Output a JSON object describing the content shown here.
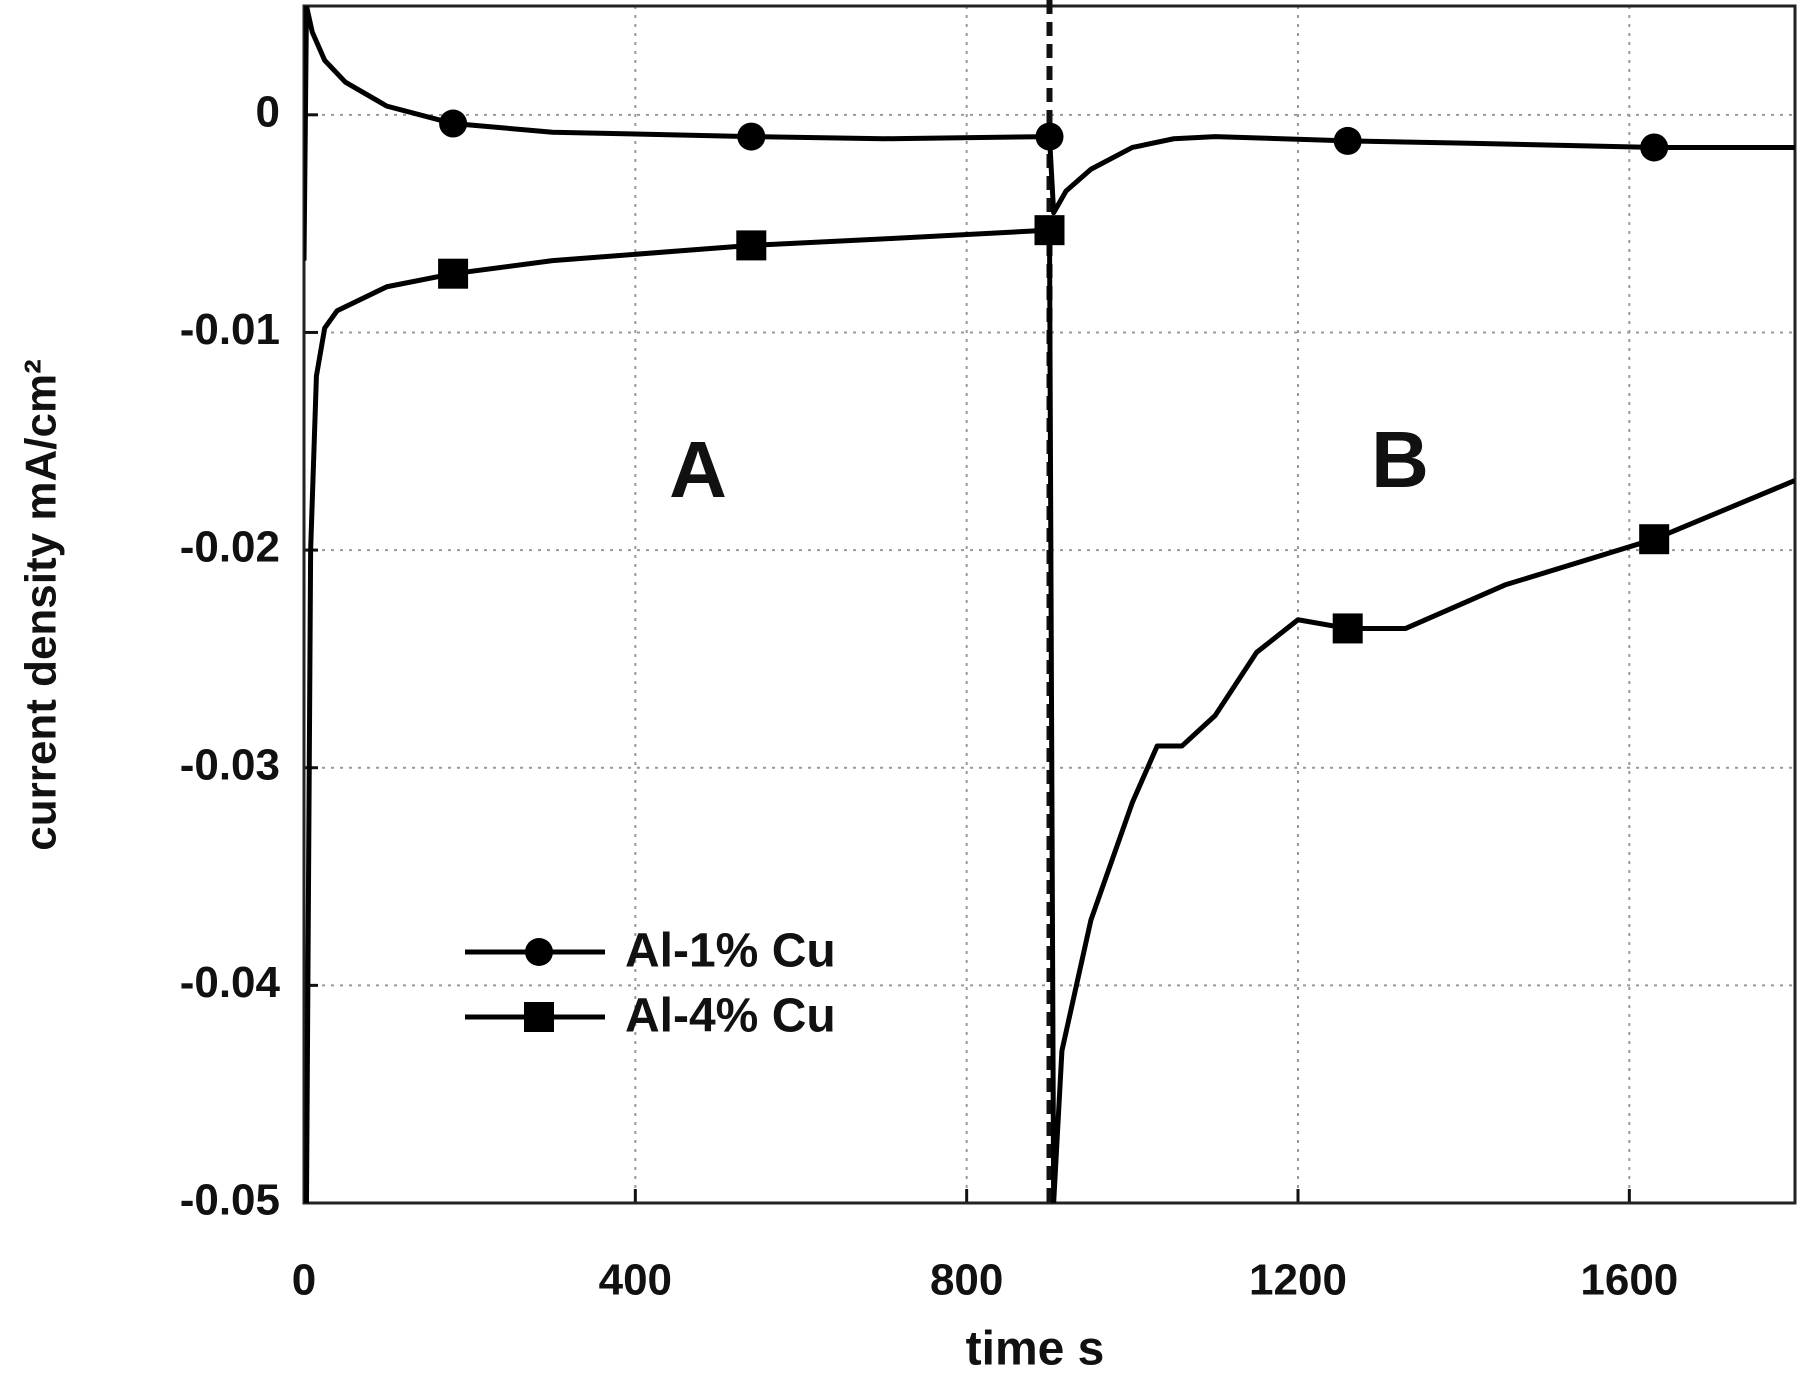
{
  "chart_data": {
    "type": "line",
    "xlabel": "time s",
    "ylabel": "current density mA/cm²",
    "annotations": [
      "A",
      "B"
    ],
    "xlim": [
      0,
      1800
    ],
    "xticks": [
      0,
      400,
      800,
      1200,
      1600
    ],
    "ylim": [
      -0.05,
      0.005
    ],
    "yticks": [
      0,
      -0.01,
      -0.02,
      -0.03,
      -0.04,
      -0.05
    ],
    "grid": true,
    "vline": 900,
    "legend": "lower left",
    "series": [
      {
        "name": "Al-1% Cu",
        "color": "#000000",
        "marker": "circle",
        "marker_x": [
          180,
          540,
          900,
          1260,
          1630
        ],
        "x": [
          0,
          3,
          10,
          25,
          50,
          100,
          180,
          300,
          540,
          700,
          900,
          905,
          920,
          950,
          1000,
          1050,
          1100,
          1260,
          1400,
          1630,
          1800
        ],
        "values": [
          -0.0067,
          0.005,
          0.0038,
          0.0025,
          0.0015,
          0.0004,
          -0.0004,
          -0.0008,
          -0.001,
          -0.0011,
          -0.001,
          -0.0045,
          -0.0035,
          -0.0025,
          -0.0015,
          -0.0011,
          -0.001,
          -0.0012,
          -0.0013,
          -0.0015,
          -0.0015
        ]
      },
      {
        "name": "Al-4% Cu",
        "color": "#000000",
        "marker": "square",
        "marker_x": [
          180,
          540,
          900,
          1260,
          1630
        ],
        "x": [
          3,
          8,
          15,
          25,
          40,
          100,
          180,
          300,
          540,
          700,
          900,
          905,
          915,
          950,
          1000,
          1030,
          1060,
          1100,
          1150,
          1200,
          1260,
          1330,
          1450,
          1630,
          1800
        ],
        "values": [
          -0.05,
          -0.02,
          -0.012,
          -0.0098,
          -0.009,
          -0.0079,
          -0.0073,
          -0.0067,
          -0.006,
          -0.0057,
          -0.0053,
          -0.05,
          -0.043,
          -0.037,
          -0.0316,
          -0.029,
          -0.029,
          -0.0276,
          -0.0247,
          -0.0232,
          -0.0236,
          -0.0236,
          -0.0216,
          -0.0195,
          -0.0168
        ]
      }
    ]
  }
}
